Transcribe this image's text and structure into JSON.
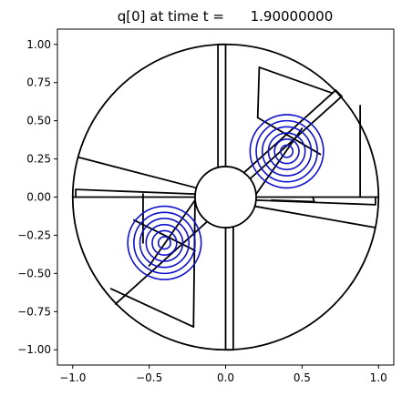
{
  "chart_data": {
    "type": "contour",
    "title": "q[0] at time t =      1.90000000",
    "xlabel": "",
    "ylabel": "",
    "xlim": [
      -1.1,
      1.1
    ],
    "ylim": [
      -1.1,
      1.1
    ],
    "aspect": "equal",
    "grid": false,
    "x_ticks": [
      -1.0,
      -0.5,
      0.0,
      0.5,
      1.0
    ],
    "x_tick_labels": [
      "−1.0",
      "−0.5",
      "0.0",
      "0.5",
      "1.0"
    ],
    "y_ticks": [
      1.0,
      0.75,
      0.5,
      0.25,
      0.0,
      -0.25,
      -0.5,
      -0.75,
      -1.0
    ],
    "y_tick_labels": [
      "1.00",
      "0.75",
      "0.50",
      "0.25",
      "0.00",
      "−0.25",
      "−0.50",
      "−0.75",
      "−1.00"
    ],
    "colors": {
      "grid_lines": "#000000",
      "contours": "#1010cc"
    },
    "outer_circle": {
      "cx": 0.0,
      "cy": 0.0,
      "r": 1.0
    },
    "inner_circle": {
      "cx": 0.0,
      "cy": 0.0,
      "r": 0.2
    },
    "grid_segments": [
      [
        [
          -0.2,
          0.0
        ],
        [
          -1.0,
          0.0
        ]
      ],
      [
        [
          0.2,
          0.0
        ],
        [
          0.88,
          0.0
        ]
      ],
      [
        [
          0.88,
          0.0
        ],
        [
          0.88,
          0.6
        ]
      ],
      [
        [
          0.88,
          0.0
        ],
        [
          1.0,
          0.0
        ]
      ],
      [
        [
          -0.05,
          0.2
        ],
        [
          -0.05,
          1.0
        ]
      ],
      [
        [
          -0.05,
          1.0
        ],
        [
          0.0,
          1.0
        ]
      ],
      [
        [
          0.0,
          1.0
        ],
        [
          0.0,
          0.2
        ]
      ],
      [
        [
          0.05,
          -0.2
        ],
        [
          0.05,
          -1.0
        ]
      ],
      [
        [
          0.05,
          -1.0
        ],
        [
          0.0,
          -1.0
        ]
      ],
      [
        [
          0.0,
          -1.0
        ],
        [
          0.0,
          -0.2
        ]
      ],
      [
        [
          -0.2,
          0.02
        ],
        [
          -0.98,
          0.05
        ]
      ],
      [
        [
          -0.98,
          0.05
        ],
        [
          -0.98,
          0.0
        ]
      ],
      [
        [
          0.2,
          -0.02
        ],
        [
          0.98,
          -0.05
        ]
      ],
      [
        [
          0.98,
          -0.05
        ],
        [
          0.98,
          0.0
        ]
      ],
      [
        [
          -0.19,
          0.06
        ],
        [
          -0.96,
          0.26
        ]
      ],
      [
        [
          0.19,
          -0.06
        ],
        [
          0.98,
          -0.2
        ]
      ],
      [
        [
          0.12,
          0.16
        ],
        [
          0.72,
          0.7
        ]
      ],
      [
        [
          0.72,
          0.7
        ],
        [
          0.76,
          0.66
        ]
      ],
      [
        [
          0.76,
          0.66
        ],
        [
          0.16,
          0.12
        ]
      ],
      [
        [
          0.2,
          0.02
        ],
        [
          0.5,
          0.45
        ]
      ],
      [
        [
          0.21,
          0.52
        ],
        [
          0.62,
          0.28
        ]
      ],
      [
        [
          0.21,
          0.52
        ],
        [
          0.22,
          0.85
        ]
      ],
      [
        [
          0.22,
          0.85
        ],
        [
          0.7,
          0.68
        ]
      ],
      [
        [
          0.3,
          -0.02
        ],
        [
          0.58,
          -0.03
        ]
      ],
      [
        [
          0.58,
          -0.03
        ],
        [
          0.57,
          0.0
        ]
      ],
      [
        [
          -0.12,
          -0.16
        ],
        [
          -0.72,
          -0.7
        ]
      ],
      [
        [
          -0.2,
          -0.02
        ],
        [
          -0.5,
          -0.45
        ]
      ],
      [
        [
          -0.2,
          -0.35
        ],
        [
          -0.6,
          -0.15
        ]
      ],
      [
        [
          -0.2,
          -0.02
        ],
        [
          -0.21,
          -0.85
        ]
      ],
      [
        [
          -0.21,
          -0.85
        ],
        [
          -0.75,
          -0.6
        ]
      ],
      [
        [
          -0.54,
          0.02
        ],
        [
          -0.54,
          -0.3
        ]
      ]
    ],
    "contour_centers": [
      {
        "cx": 0.4,
        "cy": 0.3
      },
      {
        "cx": -0.4,
        "cy": -0.3
      }
    ],
    "contour_radii": [
      0.04,
      0.08,
      0.12,
      0.16,
      0.2,
      0.24
    ]
  }
}
